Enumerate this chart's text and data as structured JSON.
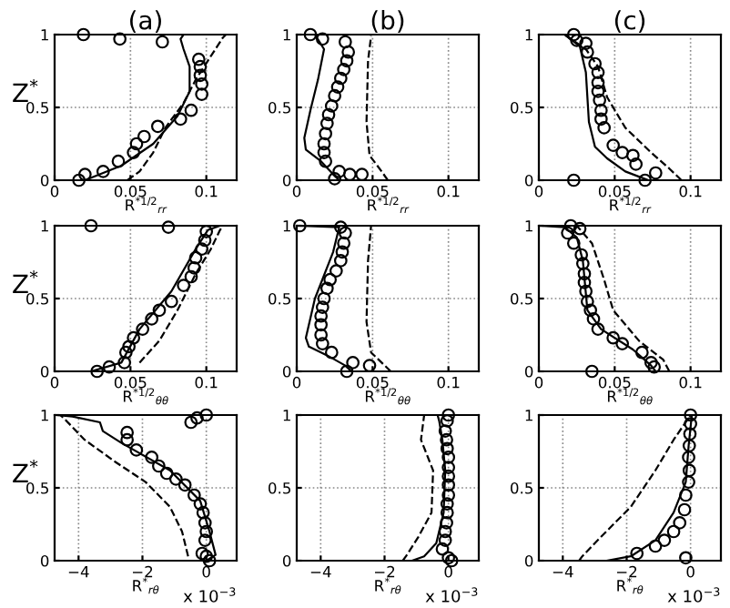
{
  "chart_data": [
    {
      "type": "line",
      "title": "(a)",
      "xlabel": "R$^{*1/2}$$_{rr}$",
      "ylabel": "Z$^{*}$",
      "xlim": [
        0,
        0.12
      ],
      "ylim": [
        0,
        1
      ],
      "xticks": [
        0,
        0.05,
        0.1
      ],
      "yticks": [
        0,
        0.5,
        1
      ],
      "grid": true,
      "series": [
        {
          "type": "scatter",
          "marker": "circle",
          "color": "#000000",
          "x": [
            0.016,
            0.02,
            0.032,
            0.042,
            0.052,
            0.054,
            0.059,
            0.068,
            0.083,
            0.09,
            0.097,
            0.097,
            0.096,
            0.096,
            0.095,
            0.071,
            0.043,
            0.019
          ],
          "values": [
            0,
            0.04,
            0.06,
            0.13,
            0.19,
            0.25,
            0.3,
            0.37,
            0.42,
            0.48,
            0.59,
            0.66,
            0.72,
            0.78,
            0.83,
            0.95,
            0.97,
            1
          ]
        },
        {
          "line_style": "solid",
          "color": "#000000",
          "x": [
            0,
            0.02,
            0.044,
            0.065,
            0.081,
            0.089,
            0.089,
            0.085,
            0.083,
            0.085,
            0
          ],
          "values": [
            0,
            0,
            0.1,
            0.25,
            0.44,
            0.61,
            0.78,
            0.9,
            0.97,
            1,
            1
          ]
        },
        {
          "line_style": "dashed",
          "color": "#000000",
          "x": [
            0.048,
            0.056,
            0.065,
            0.073,
            0.085,
            0.093,
            0.101,
            0.111,
            0.113
          ],
          "values": [
            0,
            0.06,
            0.19,
            0.36,
            0.53,
            0.69,
            0.82,
            0.98,
            1
          ]
        }
      ]
    },
    {
      "type": "line",
      "title": "(b)",
      "xlabel": "R$^{*1/2}$$_{rr}$",
      "xlim": [
        0,
        0.12
      ],
      "ylim": [
        0,
        1
      ],
      "xticks": [
        0,
        0.05,
        0.1
      ],
      "yticks": [
        0,
        0.5,
        1
      ],
      "grid": true,
      "series": [
        {
          "type": "scatter",
          "marker": "circle",
          "color": "#000000",
          "x": [
            0.025,
            0.043,
            0.035,
            0.028,
            0.019,
            0.018,
            0.018,
            0.019,
            0.02,
            0.021,
            0.023,
            0.025,
            0.027,
            0.029,
            0.031,
            0.033,
            0.034,
            0.032,
            0.017,
            0.009
          ],
          "values": [
            0.01,
            0.04,
            0.04,
            0.06,
            0.13,
            0.19,
            0.25,
            0.32,
            0.39,
            0.45,
            0.51,
            0.58,
            0.64,
            0.7,
            0.76,
            0.82,
            0.88,
            0.95,
            0.97,
            1
          ]
        },
        {
          "line_style": "solid",
          "color": "#000000",
          "x": [
            0.028,
            0.024,
            0.016,
            0.006,
            0.005,
            0.009,
            0.014,
            0.018,
            0.012,
            0
          ],
          "values": [
            0,
            0.04,
            0.13,
            0.21,
            0.29,
            0.48,
            0.69,
            0.9,
            1,
            1
          ]
        },
        {
          "line_style": "dashed",
          "color": "#000000",
          "x": [
            0.06,
            0.056,
            0.048,
            0.046,
            0.047,
            0.049
          ],
          "values": [
            0,
            0.06,
            0.17,
            0.4,
            0.82,
            0.99
          ]
        }
      ]
    },
    {
      "type": "line",
      "title": "(c)",
      "xlabel": "R$^{*1/2}$$_{rr}$",
      "xlim": [
        0,
        0.12
      ],
      "ylim": [
        0,
        1
      ],
      "xticks": [
        0,
        0.05,
        0.1
      ],
      "yticks": [
        0,
        0.5,
        1
      ],
      "grid": true,
      "series": [
        {
          "type": "scatter",
          "marker": "circle",
          "color": "#000000",
          "x": [
            0.023,
            0.07,
            0.077,
            0.064,
            0.062,
            0.055,
            0.049,
            0.043,
            0.041,
            0.041,
            0.04,
            0.039,
            0.039,
            0.039,
            0.037,
            0.032,
            0.031,
            0.025,
            0.023
          ],
          "values": [
            0,
            0,
            0.05,
            0.11,
            0.17,
            0.19,
            0.24,
            0.36,
            0.42,
            0.48,
            0.55,
            0.61,
            0.67,
            0.74,
            0.8,
            0.88,
            0.94,
            0.96,
            1
          ]
        },
        {
          "line_style": "solid",
          "color": "#000000",
          "x": [
            0.072,
            0.057,
            0.045,
            0.037,
            0.033,
            0.031,
            0.027,
            0.017,
            0
          ],
          "values": [
            0,
            0.06,
            0.15,
            0.23,
            0.4,
            0.74,
            0.92,
            1,
            1
          ]
        },
        {
          "line_style": "dashed",
          "color": "#000000",
          "x": [
            0.094,
            0.086,
            0.074,
            0.057,
            0.045,
            0.039,
            0.031,
            0.017
          ],
          "values": [
            0,
            0.08,
            0.19,
            0.36,
            0.57,
            0.78,
            0.9,
            1
          ]
        }
      ]
    },
    {
      "type": "line",
      "xlabel": "R$^{*1/2}$$_{θθ}$",
      "ylabel": "Z$^{*}$",
      "xlim": [
        0,
        0.12
      ],
      "ylim": [
        0,
        1
      ],
      "xticks": [
        0,
        0.05,
        0.1
      ],
      "yticks": [
        0,
        0.5,
        1
      ],
      "grid": true,
      "series": [
        {
          "type": "scatter",
          "marker": "circle",
          "color": "#000000",
          "x": [
            0.028,
            0.036,
            0.046,
            0.047,
            0.049,
            0.052,
            0.058,
            0.064,
            0.069,
            0.077,
            0.085,
            0.09,
            0.092,
            0.093,
            0.097,
            0.099,
            0.1,
            0.075,
            0.024
          ],
          "values": [
            0,
            0.03,
            0.06,
            0.13,
            0.17,
            0.23,
            0.29,
            0.36,
            0.42,
            0.48,
            0.59,
            0.65,
            0.71,
            0.78,
            0.84,
            0.9,
            0.96,
            0.99,
            1
          ]
        },
        {
          "line_style": "solid",
          "color": "#000000",
          "x": [
            0,
            0.024,
            0.044,
            0.056,
            0.077,
            0.093,
            0.101,
            0.109,
            0
          ],
          "values": [
            0,
            0,
            0.06,
            0.29,
            0.55,
            0.84,
            0.97,
            1,
            1
          ]
        },
        {
          "line_style": "dashed",
          "color": "#000000",
          "x": [
            0.056,
            0.069,
            0.081,
            0.093,
            0.103,
            0.109,
            0.111
          ],
          "values": [
            0.06,
            0.21,
            0.42,
            0.67,
            0.84,
            0.97,
            1
          ]
        }
      ]
    },
    {
      "type": "line",
      "xlabel": "R$^{*1/2}$$_{θθ}$",
      "xlim": [
        0,
        0.12
      ],
      "ylim": [
        0,
        1
      ],
      "xticks": [
        0,
        0.05,
        0.1
      ],
      "yticks": [
        0,
        0.5,
        1
      ],
      "grid": true,
      "series": [
        {
          "type": "scatter",
          "marker": "circle",
          "color": "#000000",
          "x": [
            0.033,
            0.048,
            0.037,
            0.023,
            0.017,
            0.016,
            0.016,
            0.016,
            0.017,
            0.018,
            0.02,
            0.022,
            0.026,
            0.029,
            0.03,
            0.031,
            0.032,
            0.029,
            0.002
          ],
          "values": [
            0,
            0.04,
            0.06,
            0.13,
            0.19,
            0.25,
            0.32,
            0.38,
            0.44,
            0.5,
            0.57,
            0.63,
            0.69,
            0.76,
            0.82,
            0.88,
            0.95,
            0.99,
            1
          ]
        },
        {
          "line_style": "solid",
          "color": "#000000",
          "x": [
            0.036,
            0.032,
            0.02,
            0.008,
            0.006,
            0.012,
            0.024,
            0.028,
            0
          ],
          "values": [
            0,
            0.04,
            0.11,
            0.17,
            0.23,
            0.5,
            0.82,
            0.99,
            1
          ]
        },
        {
          "line_style": "dashed",
          "color": "#000000",
          "x": [
            0.062,
            0.058,
            0.049,
            0.046,
            0.047,
            0.049
          ],
          "values": [
            0,
            0.04,
            0.13,
            0.34,
            0.76,
            1
          ]
        }
      ]
    },
    {
      "type": "line",
      "xlabel": "R$^{*1/2}$$_{θθ}$",
      "xlim": [
        0,
        0.12
      ],
      "ylim": [
        0,
        1
      ],
      "xticks": [
        0,
        0.05,
        0.1
      ],
      "yticks": [
        0,
        0.5,
        1
      ],
      "grid": true,
      "series": [
        {
          "type": "scatter",
          "marker": "circle",
          "color": "#000000",
          "x": [
            0.035,
            0.076,
            0.074,
            0.068,
            0.055,
            0.049,
            0.039,
            0.036,
            0.034,
            0.032,
            0.031,
            0.03,
            0.03,
            0.029,
            0.028,
            0.023,
            0.019,
            0.027,
            0.021
          ],
          "values": [
            0,
            0.03,
            0.06,
            0.13,
            0.19,
            0.23,
            0.29,
            0.36,
            0.42,
            0.48,
            0.55,
            0.61,
            0.67,
            0.74,
            0.8,
            0.88,
            0.95,
            0.98,
            1
          ]
        },
        {
          "line_style": "solid",
          "color": "#000000",
          "x": [
            0.077,
            0.074,
            0.062,
            0.041,
            0.032,
            0.029,
            0.025,
            0.017,
            0
          ],
          "values": [
            0,
            0.04,
            0.15,
            0.29,
            0.42,
            0.76,
            0.92,
            0.99,
            1
          ]
        },
        {
          "line_style": "dashed",
          "color": "#000000",
          "x": [
            0.086,
            0.082,
            0.066,
            0.049,
            0.043,
            0.035,
            0.025
          ],
          "values": [
            0,
            0.08,
            0.21,
            0.42,
            0.63,
            0.88,
            1
          ]
        }
      ]
    },
    {
      "type": "line",
      "xlabel": "R$^{*}$$_{rθ}$",
      "ylabel": "Z$^{*}$",
      "annotations": [
        "x 10$^{−3}$"
      ],
      "xlim": [
        -4.75,
        0.95
      ],
      "ylim": [
        0,
        1
      ],
      "xticks": [
        -4,
        -2,
        0
      ],
      "yticks": [
        0,
        0.5,
        1
      ],
      "grid": true,
      "series": [
        {
          "type": "scatter",
          "marker": "circle",
          "color": "#000000",
          "x": [
            0.1,
            0,
            -0.13,
            -0.04,
            0,
            -0.04,
            -0.1,
            -0.19,
            -0.38,
            -0.67,
            -0.95,
            -1.24,
            -1.49,
            -1.71,
            -2.19,
            -2.48,
            -2.48,
            -0.48,
            -0.29,
            0
          ],
          "values": [
            0,
            0.03,
            0.05,
            0.14,
            0.2,
            0.26,
            0.33,
            0.39,
            0.45,
            0.52,
            0.56,
            0.6,
            0.65,
            0.71,
            0.76,
            0.83,
            0.88,
            0.95,
            0.98,
            1
          ]
        },
        {
          "line_style": "solid",
          "color": "#000000",
          "x": [
            0,
            0.29,
            0.1,
            -0.19,
            -1.14,
            -2.67,
            -3.24,
            -3.33,
            -4.19,
            -4.67
          ],
          "values": [
            0,
            0.04,
            0.2,
            0.41,
            0.62,
            0.81,
            0.89,
            0.95,
            0.99,
            1
          ]
        },
        {
          "line_style": "dashed",
          "color": "#000000",
          "x": [
            -0.57,
            -0.76,
            -1.14,
            -1.9,
            -2.86,
            -3.81,
            -4.38,
            -4.57
          ],
          "values": [
            0.03,
            0.2,
            0.37,
            0.54,
            0.68,
            0.83,
            0.96,
            1
          ]
        }
      ]
    },
    {
      "type": "line",
      "xlabel": "R$^{*}$$_{rθ}$",
      "annotations": [
        "x 10$^{−3}$"
      ],
      "xlim": [
        -4.75,
        0.95
      ],
      "ylim": [
        0,
        1
      ],
      "xticks": [
        -4,
        -2,
        0
      ],
      "yticks": [
        0,
        0.5,
        1
      ],
      "grid": true,
      "series": [
        {
          "type": "scatter",
          "marker": "circle",
          "color": "#000000",
          "x": [
            0.1,
            0,
            -0.19,
            -0.1,
            -0.1,
            -0.06,
            -0.04,
            -0.04,
            0,
            0,
            0,
            0,
            0,
            -0.04,
            -0.06,
            -0.1,
            -0.04,
            0
          ],
          "values": [
            0,
            0.02,
            0.08,
            0.14,
            0.2,
            0.26,
            0.33,
            0.39,
            0.45,
            0.52,
            0.58,
            0.64,
            0.71,
            0.77,
            0.83,
            0.89,
            0.96,
            1
          ]
        },
        {
          "line_style": "solid",
          "color": "#000000",
          "x": [
            -1.14,
            -0.76,
            -0.38,
            -0.15,
            -0.1,
            -0.19,
            -0.29,
            -0.34
          ],
          "values": [
            0,
            0.03,
            0.12,
            0.33,
            0.62,
            0.83,
            0.96,
            1
          ]
        },
        {
          "line_style": "dashed",
          "color": "#000000",
          "x": [
            -1.43,
            -1.33,
            -0.95,
            -0.53,
            -0.48,
            -0.86,
            -0.76
          ],
          "values": [
            0,
            0.03,
            0.16,
            0.33,
            0.62,
            0.83,
            1
          ]
        }
      ]
    },
    {
      "type": "line",
      "xlabel": "R$^{*}$$_{rθ}$",
      "annotations": [
        "x 10$^{−3}$"
      ],
      "xlim": [
        -4.75,
        0.95
      ],
      "ylim": [
        0,
        1
      ],
      "xticks": [
        -4,
        -2,
        0
      ],
      "yticks": [
        0,
        0.5,
        1
      ],
      "grid": true,
      "series": [
        {
          "type": "scatter",
          "marker": "circle",
          "color": "#000000",
          "x": [
            -0.15,
            -1.68,
            -1.1,
            -0.82,
            -0.53,
            -0.34,
            -0.19,
            -0.15,
            -0.06,
            -0.04,
            -0.06,
            -0.04,
            -0.02,
            0,
            0
          ],
          "values": [
            0.02,
            0.05,
            0.1,
            0.14,
            0.2,
            0.26,
            0.35,
            0.45,
            0.54,
            0.62,
            0.71,
            0.79,
            0.87,
            0.94,
            1
          ]
        },
        {
          "line_style": "solid",
          "color": "#000000",
          "x": [
            -2.63,
            -1.87,
            -1.1,
            -0.53,
            -0.15,
            -0.06,
            0.04
          ],
          "values": [
            0,
            0.03,
            0.14,
            0.33,
            0.54,
            0.79,
            1
          ]
        },
        {
          "line_style": "dashed",
          "color": "#000000",
          "x": [
            -3.49,
            -3.39,
            -2.82,
            -1.87,
            -1.1,
            -0.53,
            0
          ],
          "values": [
            0,
            0.03,
            0.16,
            0.37,
            0.62,
            0.83,
            1
          ]
        }
      ]
    }
  ]
}
